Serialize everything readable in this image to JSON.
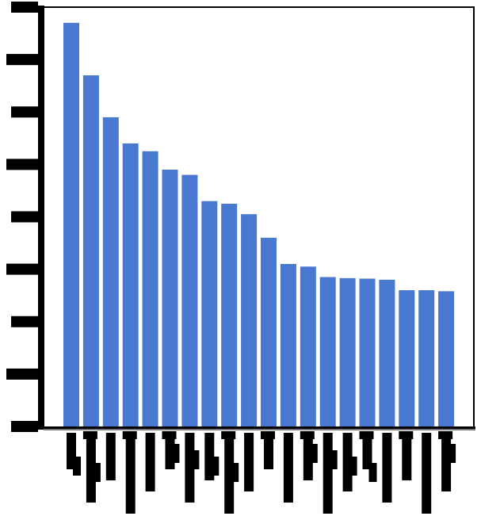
{
  "chart_data": {
    "type": "bar",
    "title": "",
    "xlabel": "",
    "ylabel": "",
    "orientation": "vertical",
    "sorted": "descending",
    "bar_color": "#4878cf",
    "grid": false,
    "legend": "none",
    "ylim": [
      0,
      8
    ],
    "y_tick_count": 9,
    "values": [
      7.7,
      6.7,
      5.9,
      5.4,
      5.25,
      4.9,
      4.8,
      4.3,
      4.25,
      4.05,
      3.6,
      3.1,
      3.05,
      2.85,
      2.83,
      2.82,
      2.8,
      2.6,
      2.6,
      2.58
    ]
  }
}
